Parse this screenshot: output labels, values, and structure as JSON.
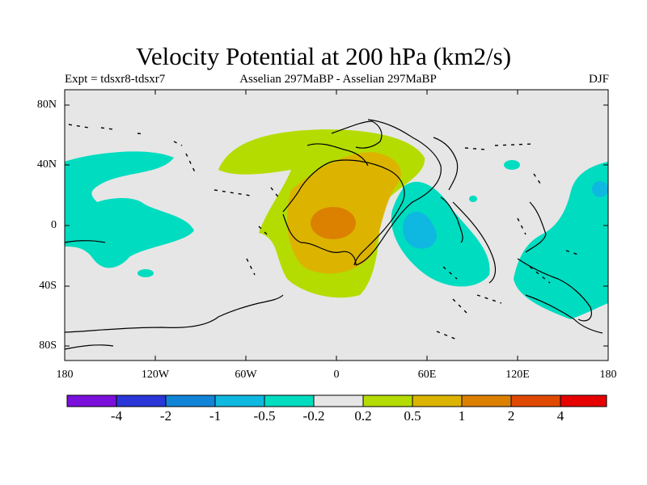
{
  "header": {
    "title": "Velocity Potential at 200 hPa (km2/s)",
    "left_label": "Expt = tdsxr8-tdsxr7",
    "center_label": "Asselian 297MaBP - Asselian 297MaBP",
    "right_label": "DJF"
  },
  "axes": {
    "lat_labels": [
      "80N",
      "40N",
      "0",
      "40S",
      "80S"
    ],
    "lon_labels": [
      "180",
      "120W",
      "60W",
      "0",
      "60E",
      "120E",
      "180"
    ]
  },
  "colorbar": {
    "labels": [
      "-4",
      "-2",
      "-1",
      "-0.5",
      "-0.2",
      "0.2",
      "0.5",
      "1",
      "2",
      "4"
    ],
    "colors": [
      "#7b10dc",
      "#2a36d8",
      "#1184d8",
      "#0fb8e0",
      "#00dcc0",
      "#e6e6e6",
      "#b4dc00",
      "#dcb400",
      "#dc8000",
      "#e04a00",
      "#e60000"
    ]
  },
  "colors": {
    "background": "#e6e6e6",
    "positive_weak": "#b4dc00",
    "positive_mid": "#dcb400",
    "positive_strong": "#dc8000",
    "negative_weak": "#00dcc0",
    "negative_mid": "#0fb8e0"
  }
}
